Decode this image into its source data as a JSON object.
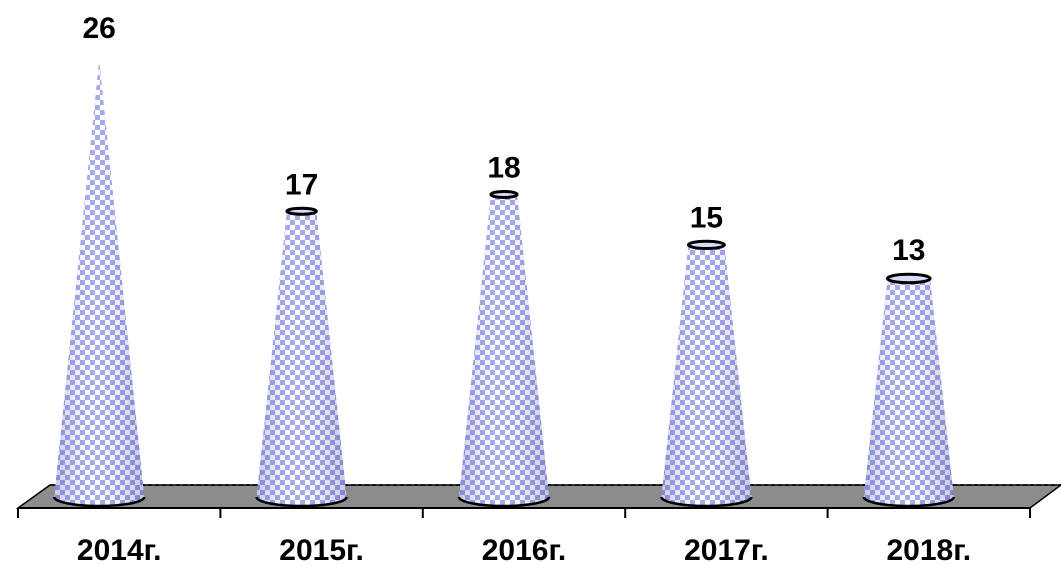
{
  "chart_data": {
    "type": "bar",
    "categories": [
      "2014г.",
      "2015г.",
      "2016г.",
      "2017г.",
      "2018г."
    ],
    "values": [
      26,
      17,
      18,
      15,
      13
    ],
    "data_labels": [
      "26",
      "17",
      "18",
      "15",
      "13"
    ],
    "title": "",
    "xlabel": "",
    "ylabel": "",
    "ylim": [
      0,
      26
    ],
    "grid": false,
    "legend": "none",
    "bar_shape": "cone",
    "series_color": "#8b8fe6",
    "floor_color": "#8c8c8c"
  }
}
